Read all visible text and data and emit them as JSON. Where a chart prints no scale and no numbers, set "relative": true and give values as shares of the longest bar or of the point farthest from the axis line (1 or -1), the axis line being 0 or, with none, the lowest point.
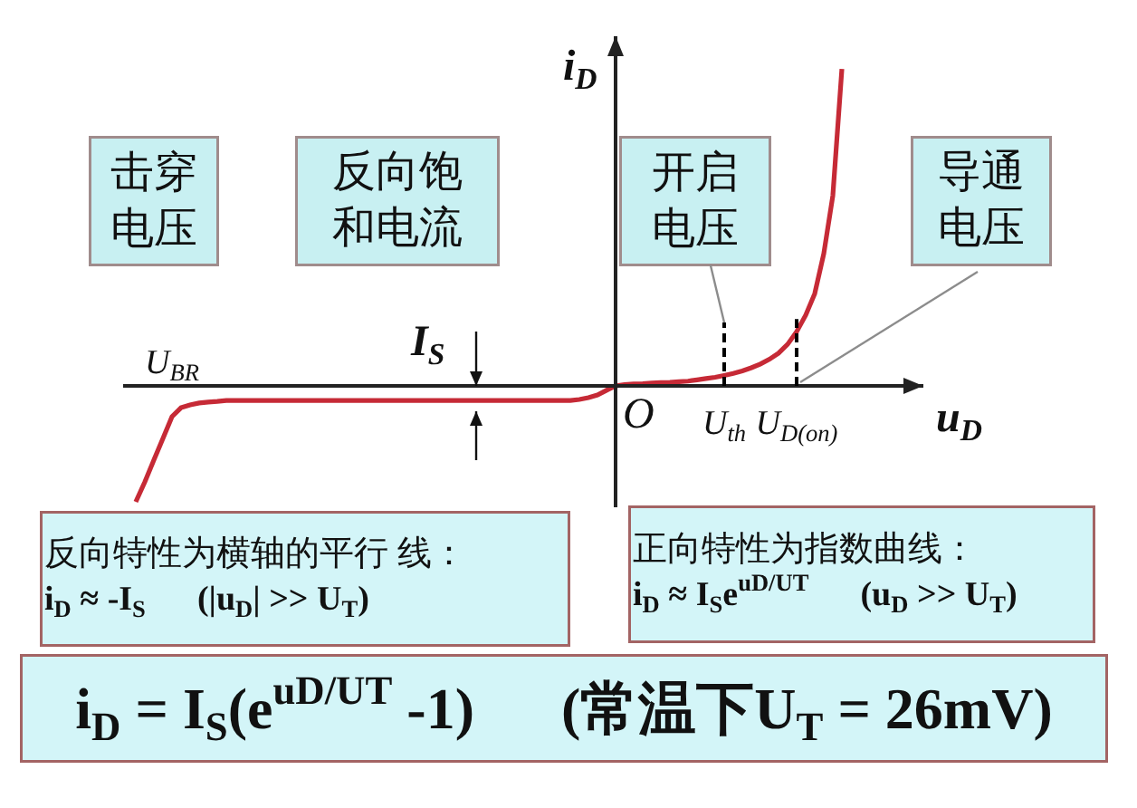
{
  "chart_data": {
    "type": "line",
    "relative": true,
    "categories": [
      null,
      null,
      null,
      null,
      "U$_{BR}$",
      null,
      null,
      null,
      null,
      null,
      null,
      null,
      null,
      null,
      null,
      null,
      null,
      null,
      null,
      null,
      null,
      null,
      null,
      null,
      null,
      null,
      null,
      null,
      null,
      null,
      null,
      null,
      null,
      null,
      null,
      null,
      null,
      null,
      null,
      null,
      null,
      null,
      null,
      null,
      null,
      null,
      null,
      null,
      null,
      null,
      null,
      null,
      null,
      null,
      null,
      null,
      null,
      null,
      null,
      null,
      null,
      null,
      null,
      null,
      null,
      "U$_{th}$",
      null,
      null,
      null,
      null,
      null,
      null,
      null,
      "U$_{D(on)}$",
      null,
      null,
      null,
      null,
      null
    ],
    "series": [
      {
        "color": "#c62a36",
        "values": [
          -0.366,
          -0.303,
          -0.234,
          -0.166,
          -0.097,
          -0.069,
          -0.06,
          -0.054,
          -0.051,
          -0.049,
          -0.046,
          -0.046,
          -0.046,
          -0.046,
          -0.046,
          -0.046,
          -0.046,
          -0.046,
          -0.046,
          -0.046,
          -0.046,
          -0.046,
          -0.046,
          -0.046,
          -0.046,
          -0.046,
          -0.046,
          -0.046,
          -0.046,
          -0.046,
          -0.046,
          -0.046,
          -0.046,
          -0.046,
          -0.046,
          -0.046,
          -0.046,
          -0.046,
          -0.046,
          -0.046,
          -0.046,
          -0.046,
          -0.046,
          -0.046,
          -0.046,
          -0.046,
          -0.046,
          -0.046,
          -0.046,
          -0.043,
          -0.037,
          -0.029,
          -0.014,
          0,
          0.004,
          0.006,
          0.007,
          0.009,
          0.01,
          0.011,
          0.013,
          0.015,
          0.019,
          0.023,
          0.027,
          0.033,
          0.039,
          0.047,
          0.057,
          0.069,
          0.084,
          0.103,
          0.131,
          0.171,
          0.223,
          0.291,
          0.417,
          0.6,
          1
        ]
      }
    ],
    "line_style": "solid",
    "xlabel": "u$_{D}$",
    "ylabel": "i$_{D}$",
    "ref_lines": [
      {
        "axis": "x",
        "value": "U$_{th}$",
        "line_style": "dashed",
        "color": "#000000"
      },
      {
        "axis": "x",
        "value": "U$_{D(on)}$",
        "line_style": "dashed",
        "color": "#000000"
      }
    ],
    "annotations": [
      "击穿电压",
      "反向饱和电流",
      {
        "text": "开启电压",
        "x": "U$_{th}$"
      },
      "导通电压",
      "I$_{S}$",
      "反向特性为横轴的平行 线：\ni$_{D}$ ≈ -I$_{S}$      (|u$_{D}$| >> U$_{T}$)",
      "正向特性为指数曲线：\ni$_{D}$ ≈ I$_{S}$e$^{uD/UT}$      (u$_{D}$ >> U$_{T}$)",
      "i$_{D}$ = I$_{S}$(e$^{uD/UT}$ -1)      (常温下U$_{T}$ = 26mV)",
      "O"
    ]
  }
}
